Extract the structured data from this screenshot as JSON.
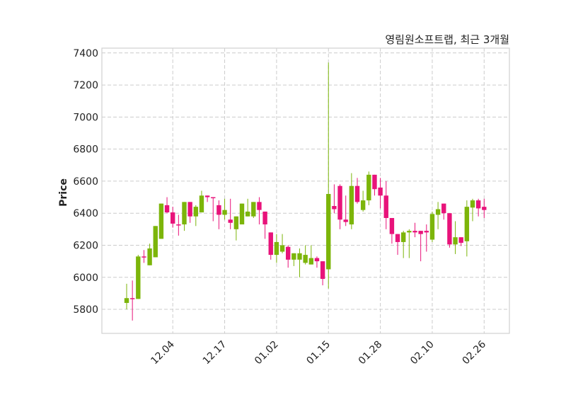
{
  "chart_data": {
    "type": "candlestick",
    "title": "영림원소프트랩, 최근 3개월",
    "xlabel": "",
    "ylabel": "Price",
    "ylim": [
      5650,
      7430
    ],
    "yticks": [
      5800,
      6000,
      6200,
      6400,
      6600,
      6800,
      7000,
      7200,
      7400
    ],
    "xticks": [
      {
        "index": 8,
        "label": "12.04"
      },
      {
        "index": 17,
        "label": "12.17"
      },
      {
        "index": 26,
        "label": "01.02"
      },
      {
        "index": 35,
        "label": "01.15"
      },
      {
        "index": 44,
        "label": "01.28"
      },
      {
        "index": 53,
        "label": "02.10"
      },
      {
        "index": 62,
        "label": "02.26"
      }
    ],
    "grid": true,
    "colors": {
      "up": "#7cb50a",
      "down": "#e8137a",
      "grid": "#cccccc"
    },
    "ohlc": [
      [
        5840,
        5960,
        5800,
        5870
      ],
      [
        5870,
        5980,
        5730,
        5865
      ],
      [
        5865,
        6140,
        5865,
        6130
      ],
      [
        6130,
        6170,
        6090,
        6125
      ],
      [
        6075,
        6210,
        6075,
        6180
      ],
      [
        6125,
        6320,
        6125,
        6320
      ],
      [
        6240,
        6460,
        6240,
        6460
      ],
      [
        6450,
        6500,
        6400,
        6405
      ],
      [
        6405,
        6440,
        6310,
        6335
      ],
      [
        6330,
        6390,
        6260,
        6325
      ],
      [
        6330,
        6470,
        6290,
        6470
      ],
      [
        6470,
        6470,
        6340,
        6380
      ],
      [
        6380,
        6450,
        6320,
        6440
      ],
      [
        6405,
        6540,
        6405,
        6510
      ],
      [
        6510,
        6510,
        6470,
        6500
      ],
      [
        6500,
        6500,
        6350,
        6495
      ],
      [
        6450,
        6480,
        6300,
        6390
      ],
      [
        6390,
        6490,
        6360,
        6420
      ],
      [
        6360,
        6490,
        6300,
        6340
      ],
      [
        6300,
        6380,
        6230,
        6380
      ],
      [
        6330,
        6460,
        6330,
        6460
      ],
      [
        6380,
        6490,
        6380,
        6410
      ],
      [
        6380,
        6470,
        6370,
        6470
      ],
      [
        6470,
        6500,
        6330,
        6420
      ],
      [
        6410,
        6410,
        6240,
        6330
      ],
      [
        6280,
        6280,
        6110,
        6140
      ],
      [
        6140,
        6270,
        6090,
        6220
      ],
      [
        6160,
        6270,
        6150,
        6200
      ],
      [
        6190,
        6200,
        6060,
        6110
      ],
      [
        6110,
        6150,
        6070,
        6150
      ],
      [
        6110,
        6180,
        6000,
        6150
      ],
      [
        6090,
        6200,
        6080,
        6140
      ],
      [
        6080,
        6200,
        6080,
        6120
      ],
      [
        6120,
        6130,
        6060,
        6100
      ],
      [
        6100,
        6100,
        5950,
        5990
      ],
      [
        6050,
        7340,
        5930,
        6520
      ],
      [
        6445,
        6580,
        6400,
        6425
      ],
      [
        6570,
        6580,
        6300,
        6360
      ],
      [
        6360,
        6510,
        6320,
        6345
      ],
      [
        6330,
        6650,
        6300,
        6570
      ],
      [
        6570,
        6620,
        6460,
        6470
      ],
      [
        6420,
        6540,
        6410,
        6480
      ],
      [
        6480,
        6660,
        6450,
        6640
      ],
      [
        6640,
        6640,
        6510,
        6550
      ],
      [
        6560,
        6620,
        6430,
        6510
      ],
      [
        6510,
        6600,
        6300,
        6370
      ],
      [
        6370,
        6370,
        6210,
        6270
      ],
      [
        6270,
        6270,
        6140,
        6220
      ],
      [
        6220,
        6290,
        6120,
        6280
      ],
      [
        6280,
        6300,
        6120,
        6290
      ],
      [
        6290,
        6340,
        6250,
        6280
      ],
      [
        6290,
        6290,
        6100,
        6270
      ],
      [
        6290,
        6330,
        6160,
        6280
      ],
      [
        6235,
        6410,
        6220,
        6395
      ],
      [
        6390,
        6470,
        6300,
        6425
      ],
      [
        6460,
        6460,
        6360,
        6400
      ],
      [
        6400,
        6400,
        6185,
        6205
      ],
      [
        6205,
        6350,
        6145,
        6250
      ],
      [
        6250,
        6250,
        6195,
        6215
      ],
      [
        6225,
        6480,
        6130,
        6440
      ],
      [
        6435,
        6490,
        6350,
        6480
      ],
      [
        6480,
        6490,
        6380,
        6430
      ],
      [
        6440,
        6490,
        6370,
        6420
      ]
    ]
  }
}
